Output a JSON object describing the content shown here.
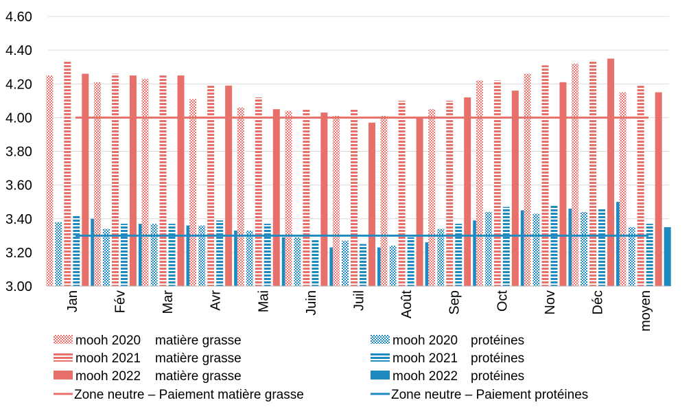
{
  "chart_data": {
    "type": "bar",
    "title": "",
    "xlabel": "",
    "ylabel": "",
    "ylim": [
      3.0,
      4.6
    ],
    "yticks": [
      "3.00",
      "3.20",
      "3.40",
      "3.60",
      "3.80",
      "4.00",
      "4.20",
      "4.40",
      "4.60"
    ],
    "grid": true,
    "legend_position": "bottom",
    "categories": [
      "Jan",
      "Fév",
      "Mar",
      "Avr",
      "Mai",
      "Juin",
      "Juil",
      "Août",
      "Sep",
      "Oct",
      "Nov",
      "Déc",
      "moyen"
    ],
    "series": [
      {
        "name": "mooh 2020 matière grasse",
        "label_a": "mooh 2020",
        "label_b": "matière grasse",
        "color": "#e8706a",
        "pattern": "dots-red",
        "values": [
          4.25,
          4.21,
          4.23,
          4.11,
          4.06,
          4.04,
          4.01,
          4.01,
          4.05,
          4.22,
          4.26,
          4.32,
          4.15
        ]
      },
      {
        "name": "mooh 2021 matière grasse",
        "label_a": "mooh 2021",
        "label_b": "matière grasse",
        "color": "#e8706a",
        "pattern": "hlines-red",
        "values": [
          4.34,
          4.26,
          4.25,
          4.19,
          4.12,
          4.05,
          4.05,
          4.1,
          4.1,
          4.22,
          4.31,
          4.34,
          4.19
        ]
      },
      {
        "name": "mooh 2022 matière grasse",
        "label_a": "mooh 2022",
        "label_b": "matière grasse",
        "color": "#e8706a",
        "pattern": "solid",
        "values": [
          4.26,
          4.25,
          4.25,
          4.19,
          4.05,
          4.03,
          3.97,
          4.0,
          4.12,
          4.16,
          4.21,
          4.35,
          4.15
        ]
      },
      {
        "name": "mooh 2020 protéines",
        "label_a": "mooh 2020",
        "label_b": "protéines",
        "color": "#1f8ac0",
        "pattern": "dots-blue",
        "values": [
          3.38,
          3.34,
          3.37,
          3.36,
          3.33,
          3.29,
          3.27,
          3.24,
          3.34,
          3.44,
          3.43,
          3.44,
          3.35
        ]
      },
      {
        "name": "mooh 2021 protéines",
        "label_a": "mooh 2021",
        "label_b": "protéines",
        "color": "#1f8ac0",
        "pattern": "hlines-blue",
        "values": [
          3.42,
          3.37,
          3.37,
          3.39,
          3.37,
          3.28,
          3.25,
          3.29,
          3.37,
          3.47,
          3.48,
          3.46,
          3.37
        ]
      },
      {
        "name": "mooh 2022 protéines",
        "label_a": "mooh 2022",
        "label_b": "protéines",
        "color": "#1f8ac0",
        "pattern": "solid",
        "values": [
          3.4,
          3.37,
          3.36,
          3.33,
          3.29,
          3.23,
          3.23,
          3.26,
          3.39,
          3.45,
          3.46,
          3.5,
          3.35
        ]
      }
    ],
    "reference_lines": [
      {
        "name": "Zone neutre – Paiement matière grasse",
        "value": 4.0,
        "color": "#e8706a"
      },
      {
        "name": "Zone neutre – Paiement protéines",
        "value": 3.3,
        "color": "#1f8ac0"
      }
    ]
  }
}
